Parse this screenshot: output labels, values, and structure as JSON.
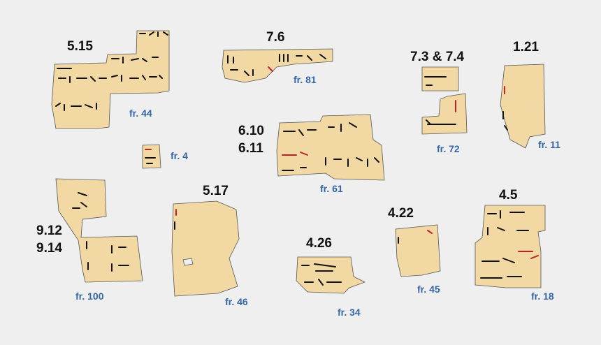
{
  "fragments": [
    {
      "id": "fr44",
      "ref": "5.15",
      "fr": "fr. 44"
    },
    {
      "id": "fr81",
      "ref": "7.6",
      "fr": "fr. 81"
    },
    {
      "id": "fr72",
      "ref": "7.3 & 7.4",
      "fr": "fr. 72"
    },
    {
      "id": "fr11",
      "ref": "1.21",
      "fr": "fr. 11"
    },
    {
      "id": "fr4",
      "ref": "",
      "fr": "fr. 4"
    },
    {
      "id": "fr61",
      "ref": "6.10",
      "ref2": "6.11",
      "fr": "fr. 61"
    },
    {
      "id": "fr100",
      "ref": "9.12",
      "ref2": "9.14",
      "fr": "fr. 100"
    },
    {
      "id": "fr46",
      "ref": "5.17",
      "fr": "fr. 46"
    },
    {
      "id": "fr34",
      "ref": "4.26",
      "fr": "fr. 34"
    },
    {
      "id": "fr45",
      "ref": "4.22",
      "fr": "fr. 45"
    },
    {
      "id": "fr18",
      "ref": "4.5",
      "fr": "fr. 18"
    }
  ],
  "colors": {
    "background": "#efefef",
    "papyrus": "#f2d9a4",
    "ink": "#111111",
    "red_ink": "#c0202a",
    "fragment_label": "#3566a6"
  }
}
